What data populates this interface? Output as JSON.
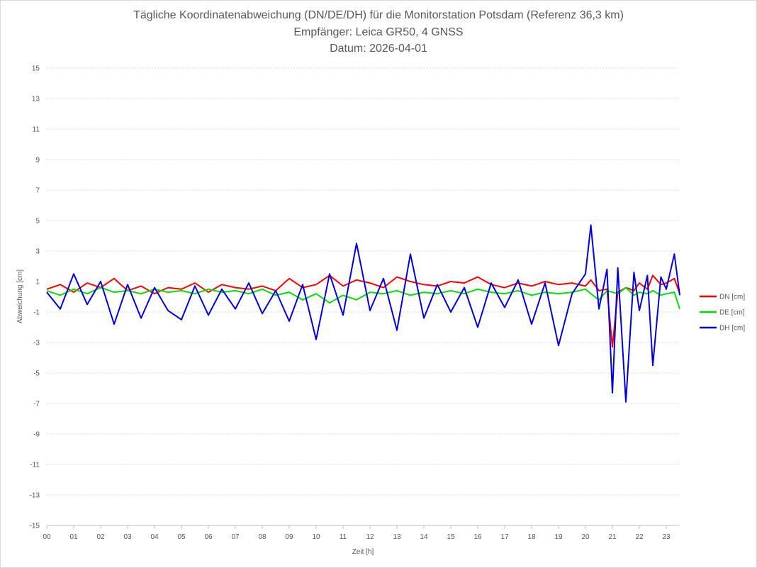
{
  "chart_data": {
    "type": "line",
    "title": "Tägliche Koordinatenabweichung (DN/DE/DH) für die Monitorstation Potsdam (Referenz 36,3 km)",
    "subtitle": "Empfänger: Leica GR50, 4 GNSS",
    "date_line": "Datum: 2026-04-01",
    "xlabel": "Zeit [h]",
    "ylabel": "Abweichung [cm]",
    "xlim": [
      0,
      23.5
    ],
    "ylim": [
      -15,
      15
    ],
    "x_ticks": [
      "00",
      "01",
      "02",
      "03",
      "04",
      "05",
      "06",
      "07",
      "08",
      "09",
      "10",
      "11",
      "12",
      "13",
      "14",
      "15",
      "16",
      "17",
      "18",
      "19",
      "20",
      "21",
      "22",
      "23"
    ],
    "y_ticks": [
      "15",
      "13",
      "11",
      "9",
      "7",
      "5",
      "3",
      "1",
      "-1",
      "-3",
      "-5",
      "-7",
      "-9",
      "-11",
      "-13",
      "-15"
    ],
    "grid": "horizontal dotted",
    "legend_position": "right",
    "x": [
      0.0,
      0.5,
      1.0,
      1.5,
      2.0,
      2.5,
      3.0,
      3.5,
      4.0,
      4.5,
      5.0,
      5.5,
      6.0,
      6.5,
      7.0,
      7.5,
      8.0,
      8.5,
      9.0,
      9.5,
      10.0,
      10.5,
      11.0,
      11.5,
      12.0,
      12.5,
      13.0,
      13.5,
      14.0,
      14.5,
      15.0,
      15.5,
      16.0,
      16.5,
      17.0,
      17.5,
      18.0,
      18.5,
      19.0,
      19.5,
      20.0,
      20.2,
      20.5,
      20.8,
      21.0,
      21.2,
      21.5,
      21.8,
      22.0,
      22.3,
      22.5,
      22.8,
      23.0,
      23.3,
      23.5
    ],
    "series": [
      {
        "name": "DN [cm]",
        "color": "#ff0000",
        "values": [
          0.5,
          0.8,
          0.3,
          0.9,
          0.6,
          1.2,
          0.4,
          0.7,
          0.2,
          0.6,
          0.5,
          0.9,
          0.3,
          0.8,
          0.6,
          0.5,
          0.7,
          0.4,
          1.2,
          0.6,
          0.8,
          1.4,
          0.7,
          1.1,
          0.9,
          0.6,
          1.3,
          1.0,
          0.8,
          0.7,
          1.0,
          0.9,
          1.3,
          0.8,
          0.6,
          0.9,
          0.7,
          1.0,
          0.8,
          0.9,
          0.7,
          1.1,
          0.4,
          0.5,
          -3.3,
          0.3,
          0.6,
          0.4,
          0.9,
          0.5,
          1.4,
          0.8,
          0.9,
          1.2,
          0.2
        ]
      },
      {
        "name": "DE [cm]",
        "color": "#00e000",
        "values": [
          0.4,
          0.1,
          0.5,
          0.2,
          0.6,
          0.3,
          0.4,
          0.2,
          0.5,
          0.3,
          0.4,
          0.2,
          0.5,
          0.3,
          0.4,
          0.2,
          0.5,
          0.1,
          0.3,
          -0.2,
          0.2,
          -0.4,
          0.1,
          -0.2,
          0.3,
          0.2,
          0.4,
          0.1,
          0.3,
          0.2,
          0.4,
          0.2,
          0.5,
          0.3,
          0.2,
          0.4,
          0.1,
          0.3,
          0.2,
          0.3,
          0.5,
          0.2,
          -0.2,
          0.4,
          0.3,
          0.2,
          0.6,
          0.1,
          0.3,
          0.2,
          0.4,
          0.1,
          0.2,
          0.3,
          -0.8
        ]
      },
      {
        "name": "DH [cm]",
        "color": "#0000e0",
        "values": [
          0.3,
          -0.8,
          1.5,
          -0.5,
          1.0,
          -1.8,
          0.8,
          -1.4,
          0.6,
          -0.9,
          -1.5,
          0.7,
          -1.2,
          0.5,
          -0.8,
          0.9,
          -1.1,
          0.4,
          -1.6,
          0.8,
          -2.8,
          1.5,
          -1.2,
          3.5,
          -0.9,
          1.2,
          -2.2,
          2.8,
          -1.4,
          0.8,
          -1.0,
          0.6,
          -2.0,
          0.9,
          -0.7,
          1.1,
          -1.8,
          0.9,
          -3.2,
          0.2,
          1.5,
          4.7,
          -0.8,
          1.8,
          -6.3,
          1.9,
          -6.9,
          1.6,
          -0.9,
          1.4,
          -4.5,
          1.3,
          0.5,
          2.8,
          0.1
        ]
      }
    ]
  }
}
